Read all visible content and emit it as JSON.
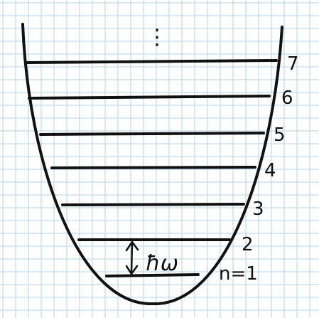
{
  "diagram": {
    "grid_color": "#b7d3ec",
    "ink_color": "#111111",
    "ellipsis": "⋮",
    "levels": [
      {
        "label": "n=1",
        "width_ratio": 0.0
      },
      {
        "label": "2",
        "width_ratio": 0.0
      },
      {
        "label": "3",
        "width_ratio": 0.0
      },
      {
        "label": "4",
        "width_ratio": 0.0
      },
      {
        "label": "5",
        "width_ratio": 0.0
      },
      {
        "label": "6",
        "width_ratio": 0.0
      },
      {
        "label": "7",
        "width_ratio": 0.0
      }
    ],
    "spacing_label": "ħω"
  }
}
